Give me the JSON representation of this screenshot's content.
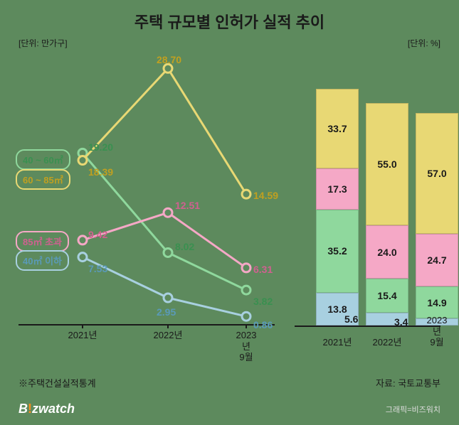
{
  "title": "주택 규모별 인허가 실적 추이",
  "unit_left": "[단위: 만가구]",
  "unit_right": "[단위: %]",
  "colors": {
    "green": "#8fd89d",
    "yellow": "#e8d874",
    "pink": "#f5a8c6",
    "blue": "#a8d0e0",
    "outline_green": "#3a9050",
    "outline_yellow": "#c0a020",
    "outline_pink": "#d06090",
    "outline_blue": "#5a9ab8"
  },
  "line_chart": {
    "ylim": [
      0,
      30
    ],
    "x_labels": [
      "2021년",
      "2022년",
      "2023년\n9월"
    ],
    "series": [
      {
        "name": "40 ~ 60㎡",
        "color": "#8fd89d",
        "outline": "#3a9050",
        "legend_label": "40 ~ 60㎡",
        "values": [
          19.2,
          8.02,
          3.82
        ]
      },
      {
        "name": "60 ~ 85㎡",
        "color": "#e8d874",
        "outline": "#c0a020",
        "legend_label": "60 ~ 85㎡",
        "values": [
          18.39,
          28.7,
          14.59
        ]
      },
      {
        "name": "85㎡ 초과",
        "color": "#f5a8c6",
        "outline": "#d06090",
        "legend_label": "85㎡ 초과",
        "values": [
          9.42,
          12.51,
          6.31
        ]
      },
      {
        "name": "40㎡ 이하",
        "color": "#a8d0e0",
        "outline": "#5a9ab8",
        "legend_label": "40㎡ 이하",
        "values": [
          7.53,
          2.95,
          0.86
        ]
      }
    ]
  },
  "stacked_bar": {
    "x_labels": [
      "2021년",
      "2022년",
      "2023년\n9월"
    ],
    "bars": [
      {
        "total_height_pct": 98,
        "segments": [
          {
            "color": "#a8d0e0",
            "value": 13.8
          },
          {
            "color": "#8fd89d",
            "value": 35.2
          },
          {
            "color": "#f5a8c6",
            "value": 17.3
          },
          {
            "color": "#e8d874",
            "value": 33.7
          }
        ]
      },
      {
        "total_height_pct": 92,
        "segments": [
          {
            "color": "#a8d0e0",
            "value": 5.6
          },
          {
            "color": "#8fd89d",
            "value": 15.4
          },
          {
            "color": "#f5a8c6",
            "value": 24.0
          },
          {
            "color": "#e8d874",
            "value": 55.0
          }
        ]
      },
      {
        "total_height_pct": 88,
        "segments": [
          {
            "color": "#a8d0e0",
            "value": 3.4
          },
          {
            "color": "#8fd89d",
            "value": 14.9
          },
          {
            "color": "#f5a8c6",
            "value": 24.7
          },
          {
            "color": "#e8d874",
            "value": 57.0
          }
        ]
      }
    ]
  },
  "footnote": "※주택건설실적통계",
  "source": "자료: 국토교통부",
  "brand": "B!zwatch",
  "credit": "그래픽=비즈워치"
}
